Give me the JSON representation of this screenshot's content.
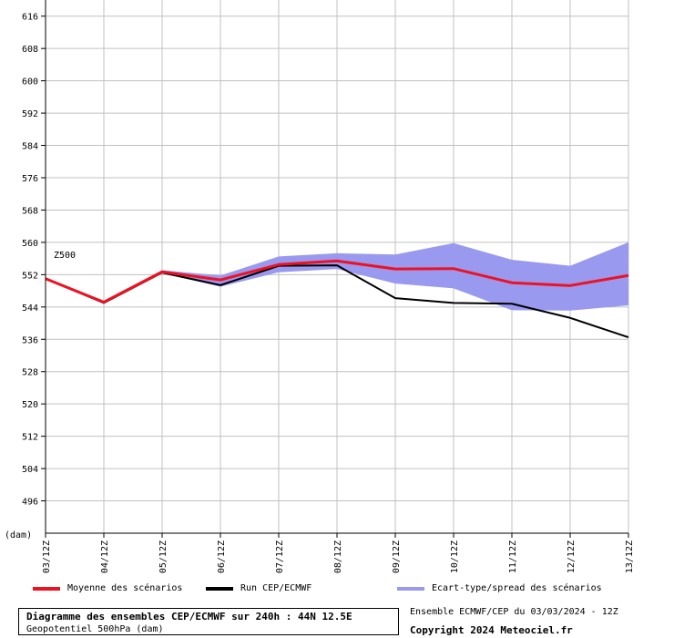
{
  "chart_data": {
    "type": "line",
    "x": [
      "03/12Z",
      "04/12Z",
      "05/12Z",
      "06/12Z",
      "07/12Z",
      "08/12Z",
      "09/12Z",
      "10/12Z",
      "11/12Z",
      "12/12Z",
      "13/12Z"
    ],
    "ylim": [
      488,
      620
    ],
    "yticks": [
      496,
      504,
      512,
      520,
      528,
      536,
      544,
      552,
      560,
      568,
      576,
      584,
      592,
      600,
      608,
      616
    ],
    "ylabel": "(dam)",
    "annotation": "Z500",
    "grid": true,
    "series": [
      {
        "name": "Moyenne des scénarios",
        "color": "#ee1122",
        "values": [
          551.0,
          545.2,
          552.7,
          550.7,
          554.5,
          555.4,
          553.4,
          553.5,
          550.0,
          549.3,
          551.8
        ]
      },
      {
        "name": "Run CEP/ECMWF",
        "color": "#000000",
        "values": [
          551.0,
          545.0,
          552.5,
          549.4,
          554.2,
          554.3,
          546.2,
          545.0,
          544.8,
          541.3,
          536.5
        ]
      }
    ],
    "spread": {
      "name": "Ecart-type/spread des scénarios",
      "color": "#9999f0",
      "upper": [
        551.0,
        545.5,
        553.1,
        551.8,
        556.5,
        557.3,
        557.0,
        559.8,
        555.7,
        554.2,
        560.0
      ],
      "lower": [
        551.0,
        544.8,
        552.4,
        549.0,
        552.6,
        553.4,
        549.8,
        548.6,
        543.2,
        543.1,
        544.4
      ]
    }
  },
  "legend": {
    "mean_label": "Moyenne des scénarios",
    "run_label": "Run CEP/ECMWF",
    "spread_label": "Ecart-type/spread des scénarios"
  },
  "info": {
    "title": "Diagramme des ensembles CEP/ECMWF sur 240h : 44N 12.5E",
    "subtitle": "Geopotentiel 500hPa (dam)",
    "ensemble": "Ensemble ECMWF/CEP du 03/03/2024 - 12Z",
    "copyright": "Copyright 2024 Meteociel.fr"
  },
  "colors": {
    "mean": "#ee1122",
    "run": "#000000",
    "spread": "#9999f0",
    "grid": "#c0c0c0"
  }
}
